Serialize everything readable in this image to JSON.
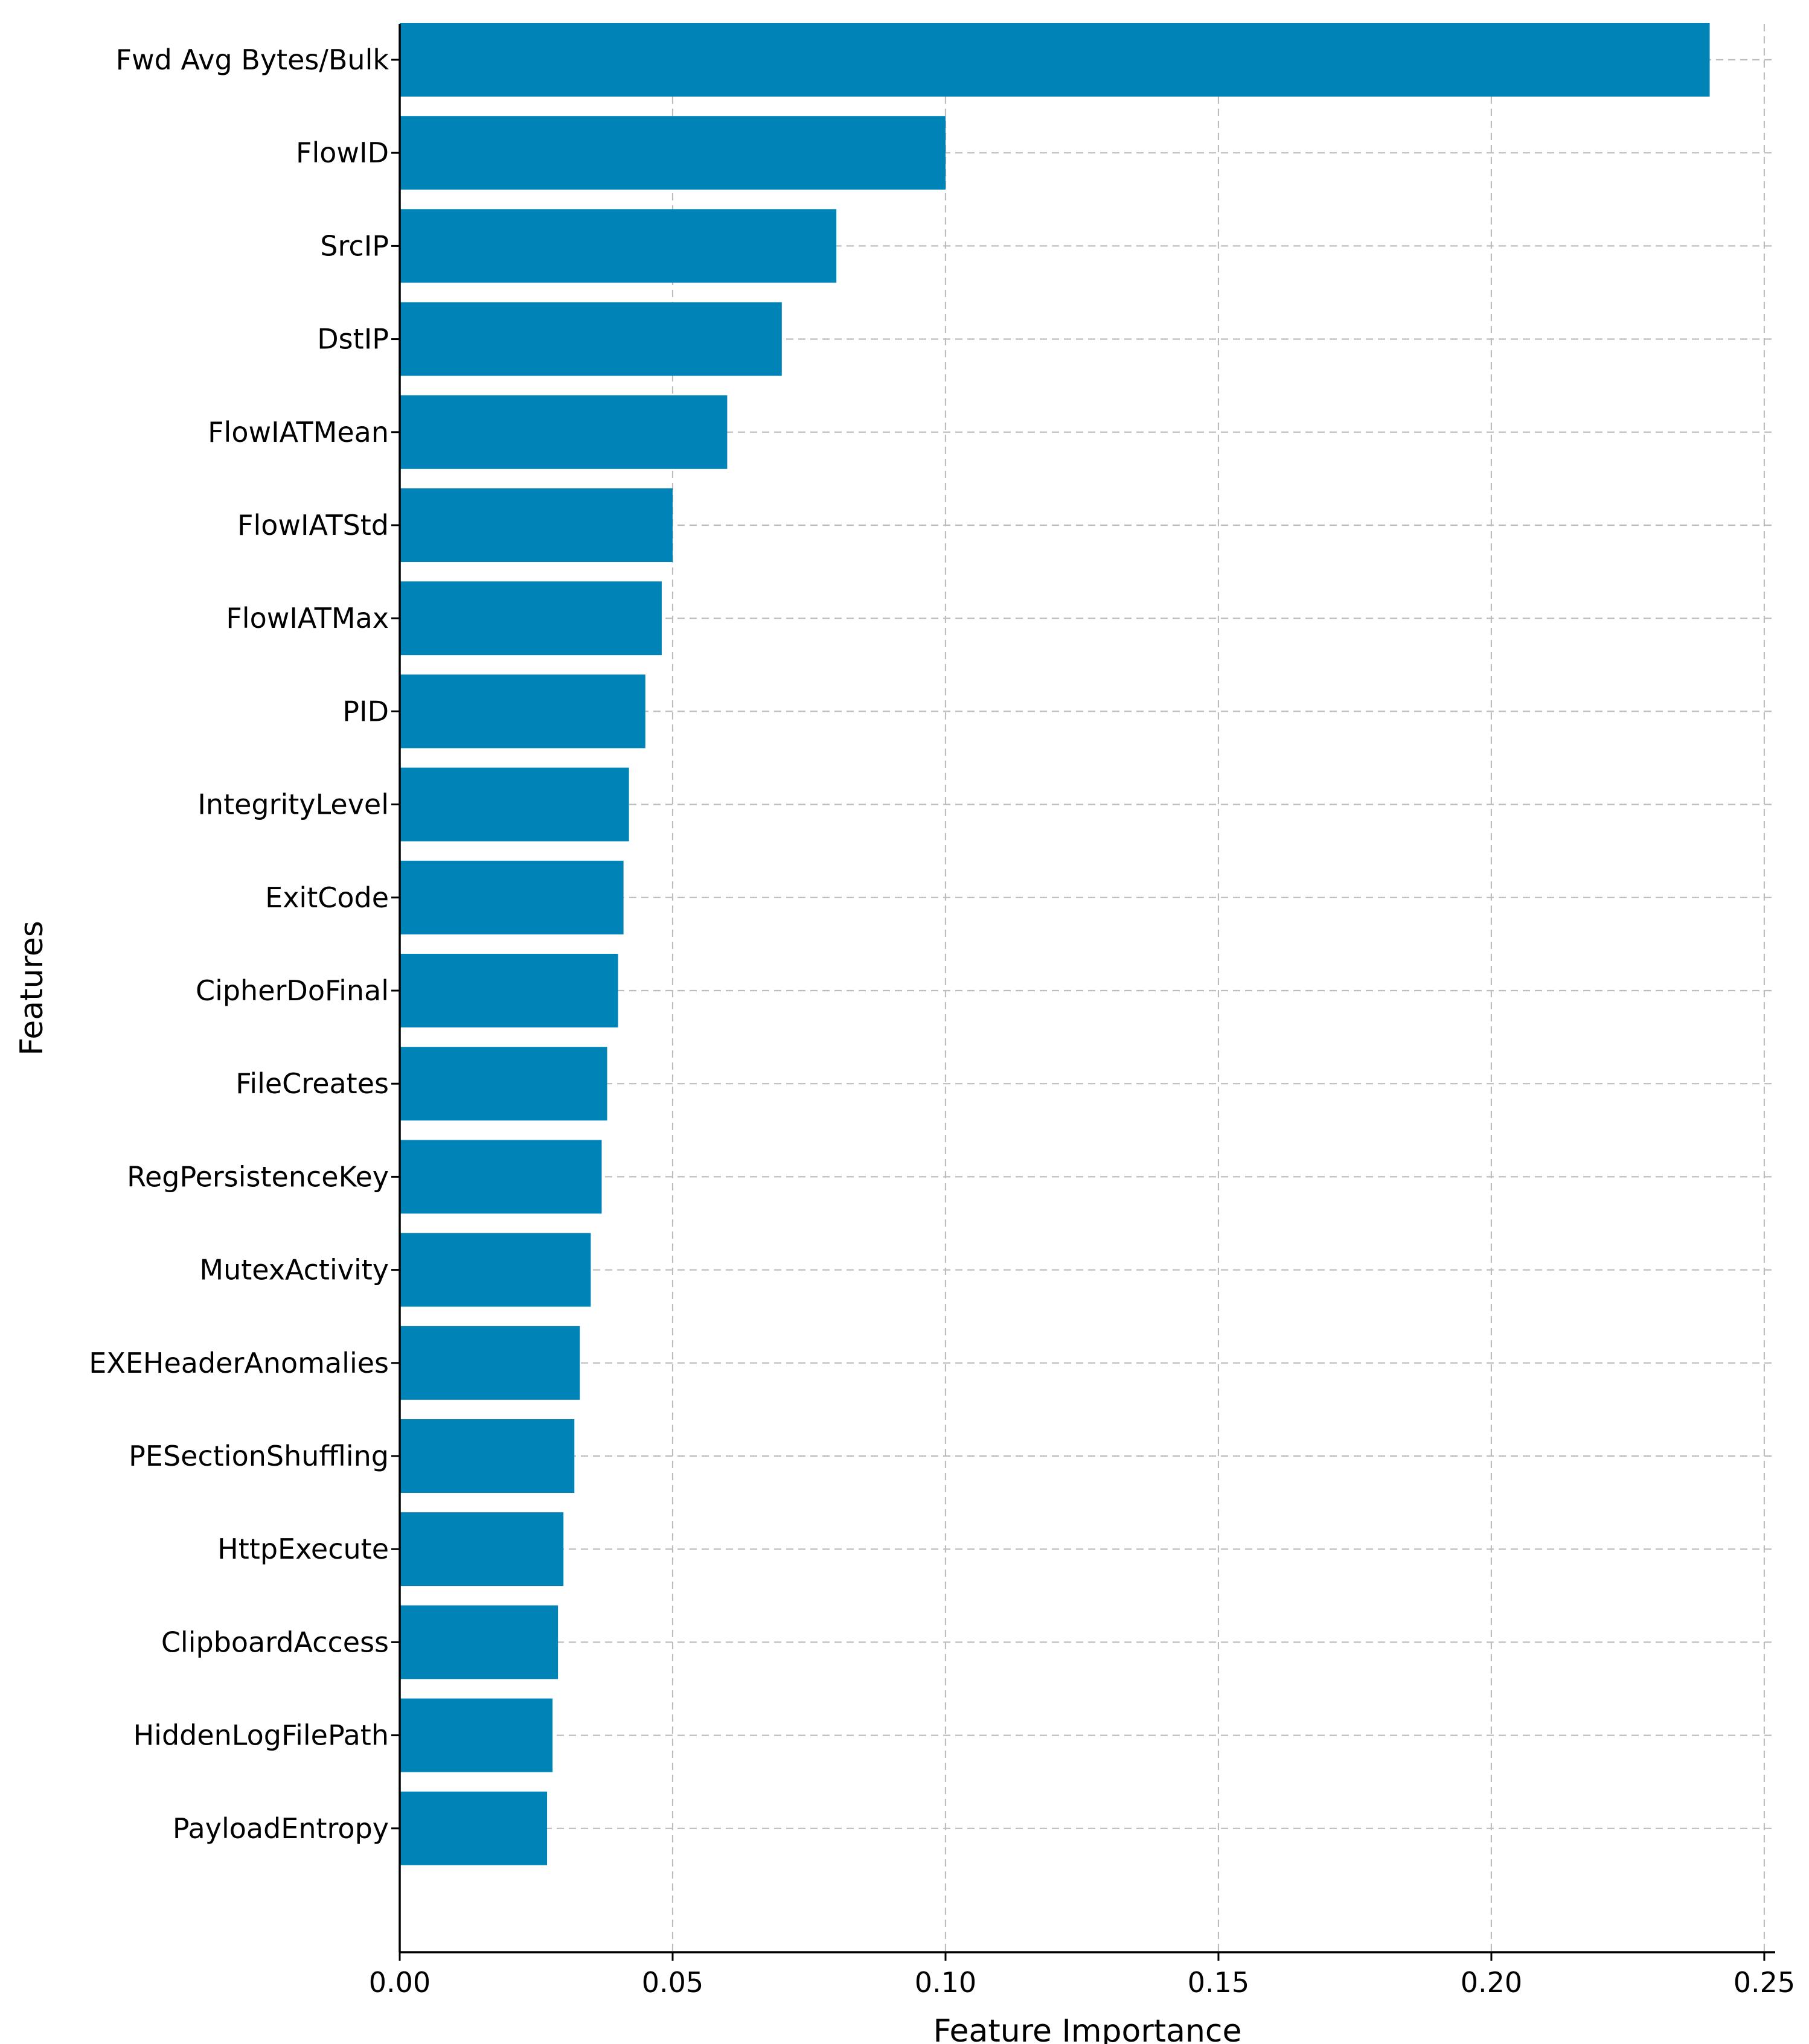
{
  "chart_data": {
    "type": "bar",
    "orientation": "horizontal",
    "categories": [
      "Fwd Avg Bytes/Bulk",
      "FlowID",
      "SrcIP",
      "DstIP",
      "FlowIATMean",
      "FlowIATStd",
      "FlowIATMax",
      "PID",
      "IntegrityLevel",
      "ExitCode",
      "CipherDoFinal",
      "FileCreates",
      "RegPersistenceKey",
      "MutexActivity",
      "EXEHeaderAnomalies",
      "PESectionShuffling",
      "HttpExecute",
      "ClipboardAccess",
      "HiddenLogFilePath",
      "PayloadEntropy"
    ],
    "values": [
      0.24,
      0.1,
      0.08,
      0.07,
      0.06,
      0.05,
      0.048,
      0.045,
      0.042,
      0.041,
      0.04,
      0.038,
      0.037,
      0.035,
      0.033,
      0.032,
      0.03,
      0.029,
      0.028,
      0.027
    ],
    "title": "",
    "xlabel": "Feature Importance",
    "ylabel": "Features",
    "xlim": [
      0.0,
      0.252
    ],
    "xticks": [
      0.0,
      0.05,
      0.1,
      0.15,
      0.2,
      0.25
    ],
    "xtick_labels": [
      "0.00",
      "0.05",
      "0.10",
      "0.15",
      "0.20",
      "0.25"
    ],
    "grid": true,
    "bar_color": "#0084b8",
    "grid_color": "#bdbdbd"
  }
}
